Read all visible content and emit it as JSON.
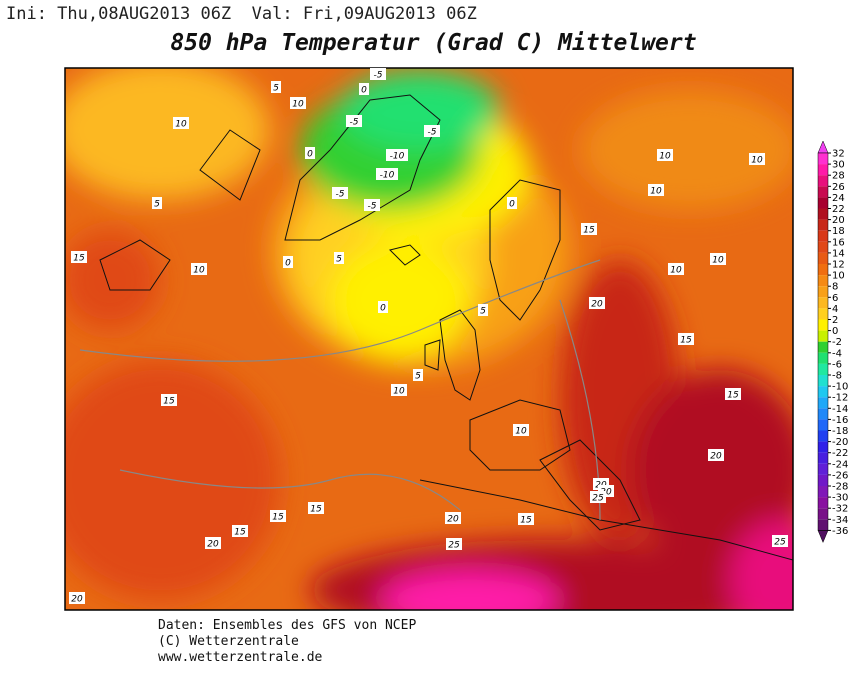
{
  "header": {
    "init": "Ini: Thu,08AUG2013 06Z",
    "valid": "Val: Fri,09AUG2013 06Z",
    "title": "850 hPa Temperatur (Grad C) Mittelwert"
  },
  "map": {
    "contour_labels": [
      "-5",
      "0",
      "5",
      "10",
      "10",
      "-5",
      "-5",
      "0",
      "-10",
      "-10",
      "-5",
      "-5",
      "0",
      "5",
      "10",
      "10",
      "10",
      "15",
      "15",
      "10",
      "5",
      "0",
      "10",
      "10",
      "0",
      "5",
      "20",
      "15",
      "5",
      "10",
      "15",
      "15",
      "10",
      "20",
      "20",
      "20",
      "25",
      "15",
      "15",
      "15",
      "20",
      "20",
      "15",
      "25",
      "25",
      "20"
    ]
  },
  "colorbar": {
    "labels": [
      32,
      30,
      28,
      26,
      24,
      22,
      20,
      18,
      16,
      14,
      12,
      10,
      8,
      6,
      4,
      2,
      0,
      -2,
      -4,
      -6,
      -8,
      -10,
      -12,
      -14,
      -16,
      -18,
      -20,
      -22,
      -24,
      -26,
      -28,
      -30,
      -32,
      -34,
      -36
    ],
    "colors": [
      "#f040f0",
      "#ff30d0",
      "#ff1aa8",
      "#e8107c",
      "#c80a50",
      "#a80030",
      "#b01020",
      "#c82818",
      "#d83818",
      "#e04818",
      "#e85a14",
      "#f06e10",
      "#f58a14",
      "#f8a018",
      "#fcb820",
      "#ffd020",
      "#fff000",
      "#c8f000",
      "#30d030",
      "#20e070",
      "#20e8a0",
      "#20e0d0",
      "#20c8f0",
      "#20a8f8",
      "#2088f8",
      "#2068f8",
      "#2040f0",
      "#3020e8",
      "#4820e0",
      "#6020d8",
      "#7018c8",
      "#8018b8",
      "#8810a0",
      "#781088",
      "#601070",
      "#501060"
    ]
  },
  "footer": {
    "line1": "Daten: Ensembles des GFS von NCEP",
    "line2": "(C) Wetterzentrale",
    "line3": "www.wetterzentrale.de"
  }
}
